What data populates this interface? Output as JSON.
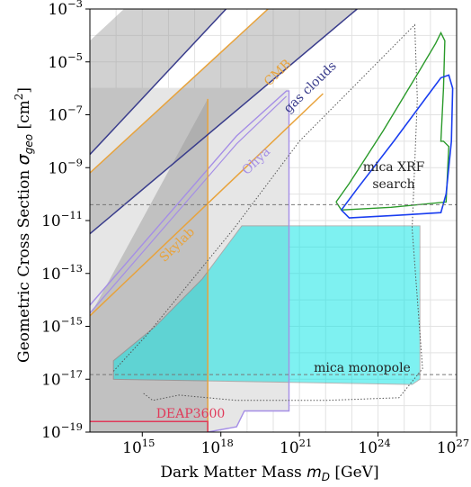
{
  "chart_data": {
    "type": "area",
    "xlabel": "Dark Matter Mass m_D [GeV]",
    "xlabel_text": "Dark Matter Mass ",
    "xlabel_math": "m",
    "xlabel_sub": "D",
    "xlabel_unit": " [GeV]",
    "ylabel_text": "Geometric Cross Section ",
    "ylabel_math": "σ",
    "ylabel_sub": "geo",
    "ylabel_unit_pre": " [cm",
    "ylabel_unit_sup": "2",
    "ylabel_unit_post": "]",
    "xscale": "log",
    "yscale": "log",
    "xlim": [
      10000000000000.0,
      1e+27
    ],
    "ylim": [
      1e-19,
      0.001
    ],
    "grid": true,
    "x_tick_exponents": [
      15,
      18,
      21,
      24,
      27
    ],
    "y_tick_exponents": [
      -3,
      -5,
      -7,
      -9,
      -11,
      -13,
      -15,
      -17,
      -19
    ],
    "tick_base": "10",
    "reference_lines": [
      {
        "axis": "y",
        "value": 4e-11,
        "style": "dashed"
      },
      {
        "axis": "y",
        "value": 1.5e-17,
        "style": "dashed"
      }
    ],
    "regions": [
      {
        "name": "DEAP3600",
        "color": "#e03a5a",
        "x_range": [
          10000000000000.0,
          3e+17
        ],
        "y_range": [
          1e-19,
          2.5e-18
        ]
      },
      {
        "name": "Skylab",
        "color": "#e8a33c",
        "x_range": [
          10000000000000.0,
          3e+17
        ],
        "y_range": [
          1e-19,
          3e-06
        ]
      },
      {
        "name": "CMB",
        "color": "#e8a33c",
        "x_range": [
          10000000000000.0,
          1e+27
        ],
        "y_range": [
          1e-19,
          0.001
        ]
      },
      {
        "name": "gas clouds",
        "color": "#3a3d8c",
        "x_range": [
          10000000000000.0,
          1e+27
        ],
        "y_range": [
          1e-19,
          0.001
        ]
      },
      {
        "name": "Ohya",
        "color": "#a58ee6",
        "x_range": [
          10000000000000.0,
          4e+20
        ],
        "y_range": [
          1e-19,
          1e-06
        ]
      },
      {
        "name": "mica monopole",
        "color": "#00e5e5",
        "x_range": [
          100000000000000.0,
          3e+25
        ],
        "y_range": [
          1e-17,
          4e-11
        ]
      },
      {
        "name": "mica XRF search",
        "color": "#1a3ef0",
        "x_range": [
          1e+22,
          7e+26
        ],
        "y_range": [
          3e-11,
          1e-05
        ]
      }
    ],
    "labels": {
      "cmb": "CMB",
      "gas": "gas clouds",
      "ohya": "Ohya",
      "skylab": "Skylab",
      "deap": "DEAP3600",
      "mica_monopole": "mica monopole",
      "mica_xrf_1": "mica XRF",
      "mica_xrf_2": "search"
    },
    "colors": {
      "cmb": "#e8a33c",
      "gas": "#3a3d8c",
      "ohya": "#a58ee6",
      "skylab": "#e8a33c",
      "deap": "#e03a5a",
      "mica_monopole": "#00e5e5",
      "mica_xrf_blue": "#1a3ef0",
      "mica_xrf_green": "#2a9a2a"
    }
  }
}
